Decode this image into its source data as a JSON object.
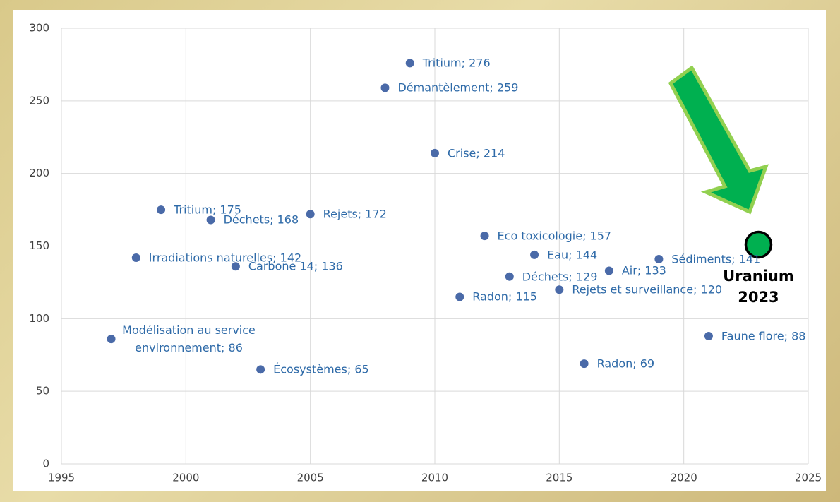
{
  "chart_data": {
    "type": "scatter",
    "series": [
      {
        "color": "#4a6aa8",
        "x": [
          1997,
          1998,
          1999,
          2001,
          2002,
          2003,
          2005,
          2008,
          2009,
          2010,
          2011,
          2012,
          2013,
          2014,
          2015,
          2016,
          2017,
          2019,
          2021
        ],
        "values": [
          86,
          142,
          175,
          168,
          136,
          65,
          172,
          259,
          276,
          214,
          115,
          157,
          129,
          144,
          120,
          69,
          133,
          141,
          88
        ],
        "value_labels": [
          "Modélisation au service environnement; 86",
          "Irradiations naturelles; 142",
          "Tritium; 175",
          "Déchets; 168",
          "Carbone 14; 136",
          "Écosystèmes; 65",
          "Rejets; 172",
          "Démantèlement; 259",
          "Tritium; 276",
          "Crise; 214",
          "Radon; 115",
          "Eco toxicologie; 157",
          "Déchets; 129",
          "Eau; 144",
          "Rejets et surveillance; 120",
          "Radon; 69",
          "Air; 133",
          "Sédiments; 141",
          "Faune flore; 88"
        ]
      },
      {
        "name": "Uranium 2023",
        "color": "#00b050",
        "x": [
          2023
        ],
        "values": [
          151
        ]
      }
    ],
    "xlim": [
      1995,
      2025
    ],
    "xticks": [
      1995,
      2000,
      2005,
      2010,
      2015,
      2020,
      2025
    ],
    "ylim": [
      0,
      300
    ],
    "yticks": [
      0,
      50,
      100,
      150,
      200,
      250,
      300
    ],
    "grid": true
  }
}
